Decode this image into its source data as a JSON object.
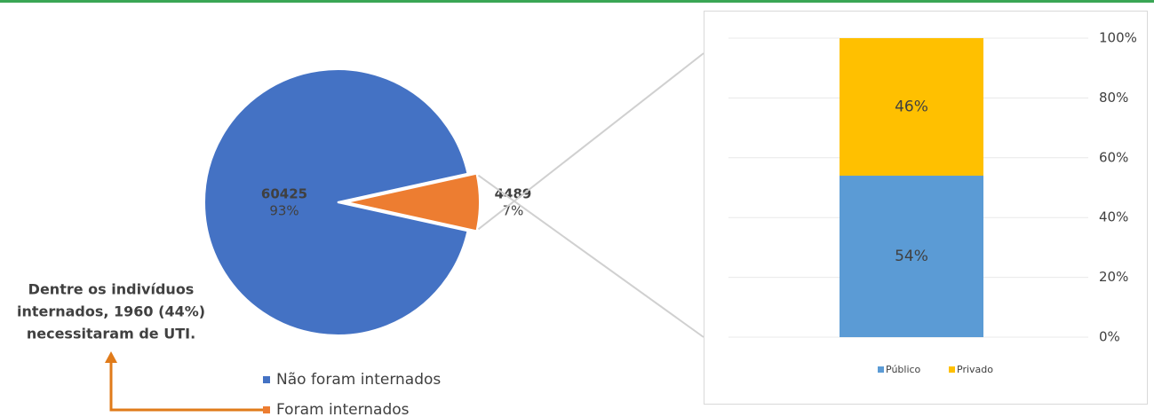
{
  "chart_data": [
    {
      "type": "pie",
      "categories": [
        "Não foram internados",
        "Foram internados"
      ],
      "values": [
        60425,
        4489
      ],
      "percent_labels": [
        "93%",
        "7%"
      ],
      "colors": [
        "#4472c4",
        "#ed7d31"
      ],
      "annotation": [
        "Dentre os indivíduos",
        "internados, 1960 (44%)",
        "necessitaram de UTI."
      ]
    },
    {
      "type": "stacked_bar",
      "categories": [
        null
      ],
      "series": [
        {
          "name": "Público",
          "color": "#5b9bd5",
          "values": [
            54
          ],
          "value_labels": [
            "54%"
          ]
        },
        {
          "name": "Privado",
          "color": "#ffc000",
          "values": [
            46
          ],
          "value_labels": [
            "46%"
          ]
        }
      ],
      "ylim": [
        0,
        100
      ],
      "yticks": [
        {
          "value": 0,
          "label": "0%"
        },
        {
          "value": 20,
          "label": "20%"
        },
        {
          "value": 40,
          "label": "40%"
        },
        {
          "value": 60,
          "label": "60%"
        },
        {
          "value": 80,
          "label": "80%"
        },
        {
          "value": 100,
          "label": "100%"
        }
      ],
      "grid": true
    }
  ]
}
